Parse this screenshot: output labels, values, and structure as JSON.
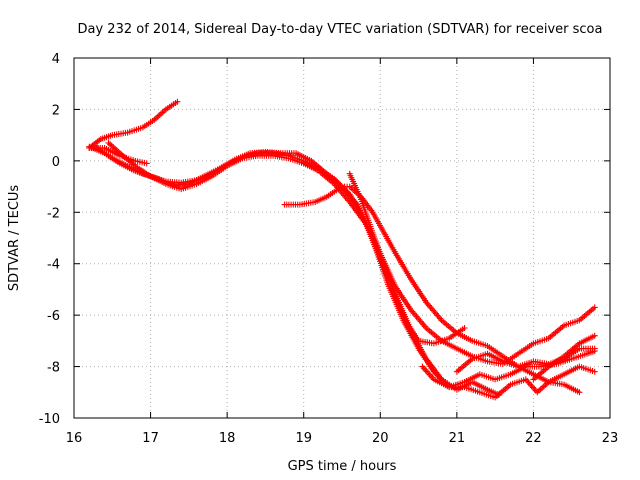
{
  "chart_data": {
    "type": "scatter",
    "title": "Day 232 of 2014, Sidereal Day-to-day VTEC variation (SDTVAR) for receiver scoa",
    "xlabel": "GPS time / hours",
    "ylabel": "SDTVAR / TECUs",
    "xlim": [
      16,
      23
    ],
    "ylim": [
      -10,
      4
    ],
    "xticks": [
      "16",
      "17",
      "18",
      "19",
      "20",
      "21",
      "22",
      "23"
    ],
    "yticks": [
      "4",
      "2",
      "0",
      "-2",
      "-4",
      "-6",
      "-8",
      "-10"
    ],
    "grid": true,
    "marker": "+",
    "color": "#ff0000",
    "series": [
      {
        "name": "track-1",
        "points": [
          [
            16.2,
            0.5
          ],
          [
            16.35,
            0.85
          ],
          [
            16.5,
            1.0
          ],
          [
            16.7,
            1.1
          ],
          [
            16.9,
            1.3
          ],
          [
            17.05,
            1.6
          ],
          [
            17.2,
            2.0
          ],
          [
            17.35,
            2.3
          ]
        ]
      },
      {
        "name": "track-2",
        "points": [
          [
            16.2,
            0.5
          ],
          [
            16.4,
            0.5
          ],
          [
            16.6,
            0.2
          ],
          [
            16.8,
            0.0
          ],
          [
            16.95,
            -0.1
          ]
        ]
      },
      {
        "name": "track-3",
        "points": [
          [
            16.2,
            0.55
          ],
          [
            16.4,
            0.3
          ],
          [
            16.6,
            -0.1
          ],
          [
            16.8,
            -0.4
          ],
          [
            17.0,
            -0.6
          ],
          [
            17.2,
            -0.8
          ],
          [
            17.4,
            -0.85
          ],
          [
            17.6,
            -0.75
          ],
          [
            17.8,
            -0.5
          ],
          [
            18.0,
            -0.15
          ],
          [
            18.2,
            0.15
          ],
          [
            18.4,
            0.3
          ],
          [
            18.6,
            0.3
          ],
          [
            18.8,
            0.2
          ],
          [
            19.0,
            0.0
          ],
          [
            19.2,
            -0.3
          ],
          [
            19.4,
            -0.7
          ],
          [
            19.6,
            -1.3
          ],
          [
            19.8,
            -2.3
          ],
          [
            19.95,
            -3.5
          ],
          [
            20.1,
            -4.8
          ],
          [
            20.3,
            -6.2
          ],
          [
            20.5,
            -7.3
          ],
          [
            20.7,
            -8.2
          ],
          [
            20.9,
            -8.8
          ],
          [
            21.1,
            -8.6
          ],
          [
            21.3,
            -8.3
          ],
          [
            21.5,
            -8.5
          ],
          [
            21.7,
            -8.3
          ],
          [
            21.9,
            -8.0
          ],
          [
            22.1,
            -8.0
          ],
          [
            22.3,
            -7.9
          ],
          [
            22.5,
            -7.7
          ],
          [
            22.7,
            -7.5
          ],
          [
            22.8,
            -7.4
          ]
        ]
      },
      {
        "name": "track-4",
        "points": [
          [
            16.3,
            0.5
          ],
          [
            16.5,
            0.1
          ],
          [
            16.7,
            -0.2
          ],
          [
            16.9,
            -0.5
          ],
          [
            17.1,
            -0.7
          ],
          [
            17.3,
            -0.95
          ],
          [
            17.5,
            -0.9
          ],
          [
            17.7,
            -0.6
          ],
          [
            17.9,
            -0.3
          ],
          [
            18.1,
            0.05
          ],
          [
            18.3,
            0.3
          ],
          [
            18.5,
            0.35
          ],
          [
            18.7,
            0.3
          ],
          [
            18.9,
            0.3
          ],
          [
            19.1,
            0.0
          ],
          [
            19.3,
            -0.5
          ],
          [
            19.5,
            -1.0
          ],
          [
            19.7,
            -1.7
          ],
          [
            19.85,
            -2.7
          ],
          [
            20.0,
            -3.8
          ],
          [
            20.2,
            -5.2
          ],
          [
            20.4,
            -6.6
          ],
          [
            20.6,
            -7.7
          ],
          [
            20.8,
            -8.5
          ],
          [
            21.0,
            -8.9
          ],
          [
            21.2,
            -8.6
          ],
          [
            21.4,
            -8.9
          ],
          [
            21.55,
            -9.1
          ]
        ]
      },
      {
        "name": "track-5",
        "points": [
          [
            16.45,
            0.7
          ],
          [
            16.6,
            0.3
          ],
          [
            16.8,
            -0.2
          ],
          [
            17.0,
            -0.6
          ],
          [
            17.2,
            -0.9
          ],
          [
            17.4,
            -1.1
          ],
          [
            17.6,
            -0.9
          ],
          [
            17.8,
            -0.6
          ],
          [
            18.0,
            -0.2
          ],
          [
            18.2,
            0.1
          ],
          [
            18.4,
            0.2
          ],
          [
            18.6,
            0.2
          ],
          [
            18.8,
            0.1
          ],
          [
            19.0,
            -0.1
          ],
          [
            19.2,
            -0.4
          ],
          [
            19.4,
            -0.9
          ],
          [
            19.6,
            -1.6
          ],
          [
            19.8,
            -2.4
          ],
          [
            20.0,
            -3.6
          ],
          [
            20.2,
            -4.9
          ],
          [
            20.4,
            -5.8
          ],
          [
            20.6,
            -6.5
          ],
          [
            20.8,
            -7.0
          ],
          [
            21.0,
            -7.3
          ],
          [
            21.2,
            -7.6
          ],
          [
            21.4,
            -7.8
          ],
          [
            21.6,
            -7.9
          ],
          [
            21.8,
            -7.5
          ],
          [
            22.0,
            -7.1
          ],
          [
            22.2,
            -6.9
          ],
          [
            22.4,
            -6.4
          ],
          [
            22.6,
            -6.2
          ],
          [
            22.8,
            -5.7
          ]
        ]
      },
      {
        "name": "track-6",
        "points": [
          [
            18.75,
            -1.7
          ],
          [
            18.95,
            -1.7
          ],
          [
            19.15,
            -1.6
          ],
          [
            19.3,
            -1.4
          ],
          [
            19.4,
            -1.2
          ],
          [
            19.5,
            -1.0
          ],
          [
            19.6,
            -1.0
          ],
          [
            19.75,
            -1.4
          ],
          [
            19.9,
            -2.0
          ],
          [
            20.05,
            -2.8
          ],
          [
            20.2,
            -3.6
          ],
          [
            20.4,
            -4.6
          ],
          [
            20.6,
            -5.5
          ],
          [
            20.8,
            -6.2
          ],
          [
            21.0,
            -6.7
          ],
          [
            21.2,
            -7.0
          ],
          [
            21.4,
            -7.2
          ],
          [
            21.6,
            -7.6
          ],
          [
            21.8,
            -8.0
          ],
          [
            22.0,
            -8.3
          ],
          [
            22.2,
            -8.6
          ],
          [
            22.4,
            -8.7
          ],
          [
            22.6,
            -9.0
          ]
        ]
      },
      {
        "name": "track-7",
        "points": [
          [
            19.6,
            -0.5
          ],
          [
            19.75,
            -1.5
          ],
          [
            19.9,
            -2.8
          ],
          [
            20.05,
            -4.0
          ],
          [
            20.2,
            -5.3
          ],
          [
            20.35,
            -6.3
          ],
          [
            20.5,
            -7.0
          ],
          [
            20.7,
            -7.1
          ],
          [
            20.9,
            -6.9
          ],
          [
            21.1,
            -6.5
          ]
        ]
      },
      {
        "name": "track-8",
        "points": [
          [
            20.55,
            -8.0
          ],
          [
            20.7,
            -8.5
          ],
          [
            20.9,
            -8.8
          ],
          [
            21.1,
            -8.8
          ],
          [
            21.3,
            -9.0
          ],
          [
            21.5,
            -9.2
          ],
          [
            21.7,
            -8.7
          ],
          [
            21.9,
            -8.5
          ],
          [
            22.05,
            -9.0
          ],
          [
            22.2,
            -8.6
          ],
          [
            22.4,
            -8.3
          ],
          [
            22.6,
            -8.0
          ],
          [
            22.8,
            -8.2
          ]
        ]
      },
      {
        "name": "track-9",
        "points": [
          [
            21.0,
            -8.2
          ],
          [
            21.2,
            -7.7
          ],
          [
            21.4,
            -7.5
          ],
          [
            21.6,
            -7.8
          ],
          [
            21.8,
            -8.0
          ],
          [
            22.0,
            -7.8
          ],
          [
            22.2,
            -7.9
          ],
          [
            22.4,
            -7.7
          ],
          [
            22.6,
            -7.3
          ],
          [
            22.8,
            -7.3
          ]
        ]
      },
      {
        "name": "track-10",
        "points": [
          [
            22.0,
            -8.5
          ],
          [
            22.2,
            -8.0
          ],
          [
            22.4,
            -7.6
          ],
          [
            22.6,
            -7.1
          ],
          [
            22.8,
            -6.8
          ]
        ]
      }
    ]
  }
}
